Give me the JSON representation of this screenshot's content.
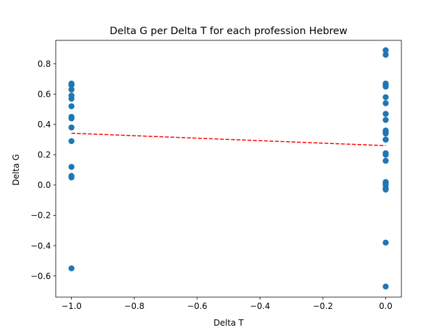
{
  "chart_data": {
    "type": "scatter",
    "title": "Delta G per Delta T for each profession Hebrew",
    "xlabel": "Delta T",
    "ylabel": "Delta G",
    "xlim": [
      -1.05,
      0.05
    ],
    "ylim": [
      -0.74,
      0.955
    ],
    "xticks": [
      -1.0,
      -0.8,
      -0.6,
      -0.4,
      -0.2,
      0.0
    ],
    "xtick_labels": [
      "−1.0",
      "−0.8",
      "−0.6",
      "−0.4",
      "−0.2",
      "0.0"
    ],
    "yticks": [
      -0.6,
      -0.4,
      -0.2,
      0.0,
      0.2,
      0.4,
      0.6,
      0.8
    ],
    "ytick_labels": [
      "−0.6",
      "−0.4",
      "−0.2",
      "0.0",
      "0.2",
      "0.4",
      "0.6",
      "0.8"
    ],
    "grid": false,
    "colors": {
      "points": "#1f77b4",
      "trend": "#ff0000"
    },
    "series": [
      {
        "marker": "circle",
        "x": [
          -1,
          -1,
          -1,
          -1,
          -1,
          -1,
          -1,
          -1,
          -1,
          -1,
          -1,
          -1,
          -1,
          -1,
          -1,
          0,
          0,
          0,
          0,
          0,
          0,
          0,
          0,
          0,
          0,
          0,
          0,
          0,
          0,
          0,
          0,
          0,
          0,
          0,
          0,
          0,
          0,
          0,
          0
        ],
        "y": [
          0.67,
          0.66,
          0.63,
          0.59,
          0.57,
          0.52,
          0.45,
          0.44,
          0.38,
          0.29,
          0.12,
          0.06,
          0.05,
          -0.55,
          0.66,
          0.89,
          0.86,
          0.67,
          0.66,
          0.58,
          0.54,
          0.47,
          0.43,
          0.36,
          0.35,
          0.34,
          0.3,
          0.21,
          0.2,
          0.16,
          0.02,
          0.01,
          0.0,
          -0.02,
          -0.03,
          -0.38,
          -0.67,
          0.65,
          0.3
        ]
      }
    ],
    "trendline": {
      "style": "dashed",
      "x": [
        -1.0,
        0.0
      ],
      "y": [
        0.342,
        0.26
      ]
    }
  }
}
